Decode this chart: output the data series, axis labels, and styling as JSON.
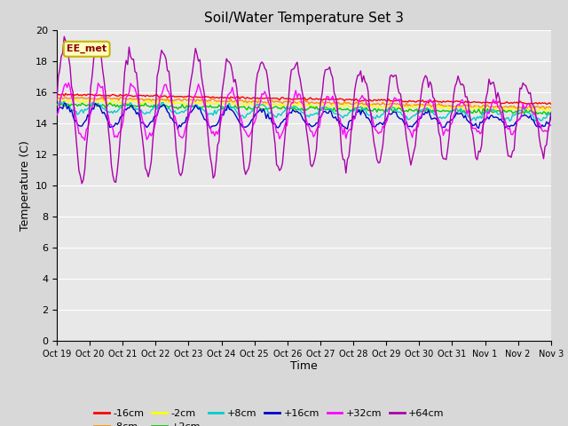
{
  "title": "Soil/Water Temperature Set 3",
  "xlabel": "Time",
  "ylabel": "Temperature (C)",
  "annotation_text": "EE_met",
  "annotation_color": "#8B0000",
  "annotation_bg": "#FFFFC0",
  "annotation_border": "#C8B400",
  "ylim": [
    0,
    20
  ],
  "yticks": [
    0,
    2,
    4,
    6,
    8,
    10,
    12,
    14,
    16,
    18,
    20
  ],
  "xtick_labels": [
    "Oct 19",
    "Oct 20",
    "Oct 21",
    "Oct 22",
    "Oct 23",
    "Oct 24",
    "Oct 25",
    "Oct 26",
    "Oct 27",
    "Oct 28",
    "Oct 29",
    "Oct 30",
    "Oct 31",
    "Nov 1",
    "Nov 2",
    "Nov 3"
  ],
  "colors": {
    "-16cm": "#FF0000",
    "-8cm": "#FF8C00",
    "-2cm": "#FFFF00",
    "+2cm": "#00CC00",
    "+8cm": "#00CCCC",
    "+16cm": "#0000CC",
    "+32cm": "#FF00FF",
    "+64cm": "#AA00AA"
  },
  "fig_bg": "#D8D8D8",
  "plot_bg": "#E8E8E8",
  "grid_color": "#FFFFFF"
}
